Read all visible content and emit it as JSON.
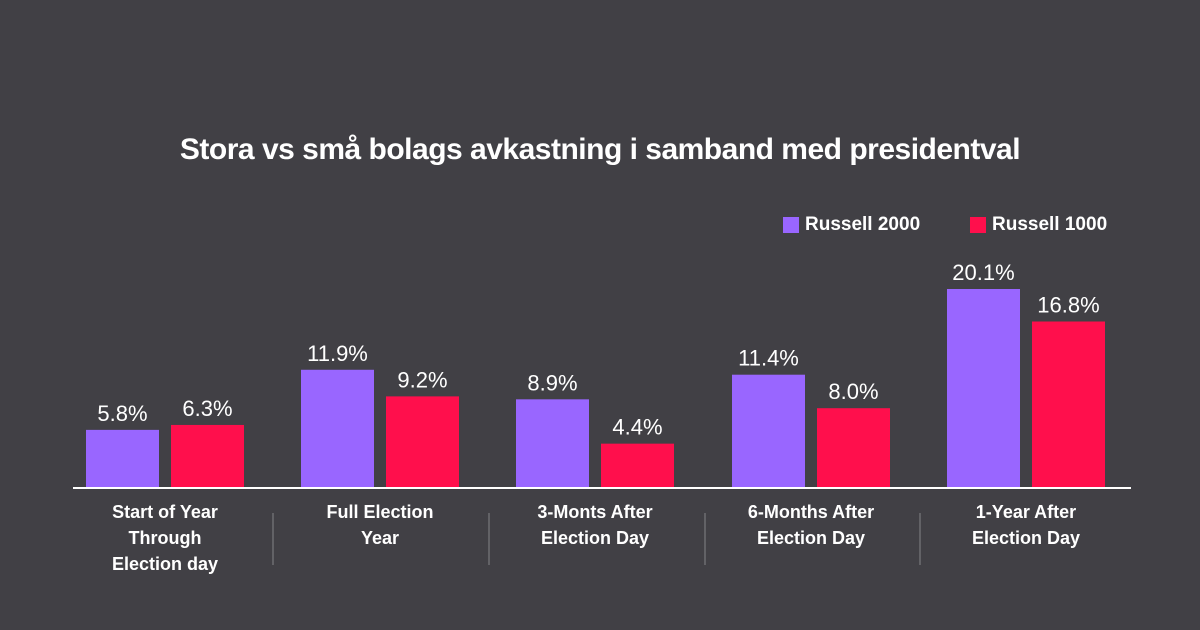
{
  "chart_data": {
    "type": "bar",
    "title": "Stora vs små bolags avkastning i samband med presidentval",
    "xlabel": "",
    "ylabel": "",
    "ylim": [
      0,
      20.1
    ],
    "grid": false,
    "legend_position": "top-right",
    "value_format": "percent-1dp",
    "categories": [
      [
        "Start of Year",
        "Through",
        "Election day"
      ],
      [
        "Full Election",
        "Year"
      ],
      [
        "3-Monts After",
        "Election Day"
      ],
      [
        "6-Months After",
        "Election Day"
      ],
      [
        "1-Year After",
        "Election Day"
      ]
    ],
    "series": [
      {
        "name": "Russell 2000",
        "color": "#9966FF",
        "values": [
          5.8,
          11.9,
          8.9,
          11.4,
          20.1
        ],
        "labels": [
          "5.8%",
          "11.9%",
          "8.9%",
          "11.4%",
          "20.1%"
        ]
      },
      {
        "name": "Russell 1000",
        "color": "#FF0F4C",
        "values": [
          6.3,
          9.2,
          4.4,
          8.0,
          16.8
        ],
        "labels": [
          "6.3%",
          "9.2%",
          "4.4%",
          "8.0%",
          "16.8%"
        ]
      }
    ]
  },
  "colors": {
    "background": "#414045",
    "text": "#FFFFFF",
    "axis": "#FFFFFF",
    "divider": "#6E6D72"
  }
}
